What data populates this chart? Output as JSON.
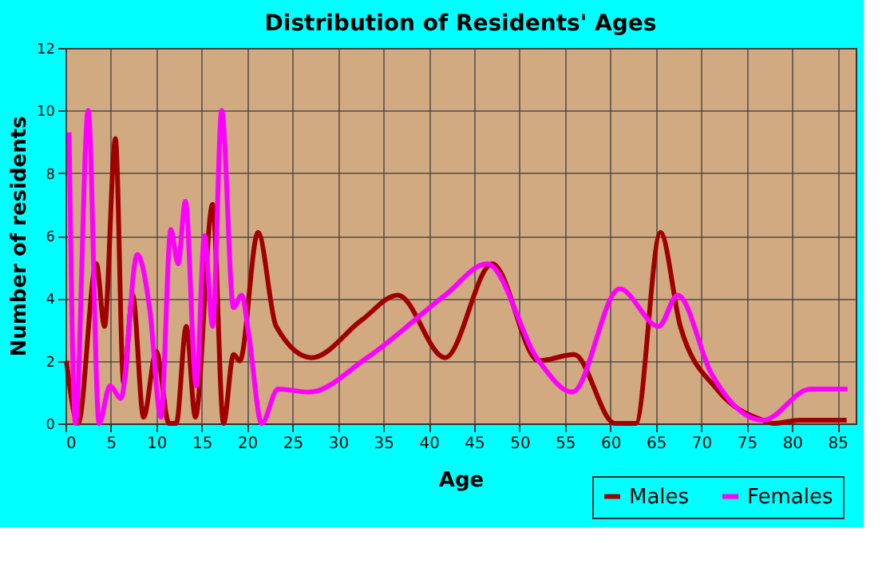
{
  "chart_data": {
    "type": "line",
    "title": "Distribution of Residents' Ages",
    "xlabel": "Age",
    "ylabel": "Number of residents",
    "series": [
      {
        "name": "Males",
        "color": "#a00000",
        "x": [
          0.1,
          1.4,
          3.4,
          4.3,
          5.5,
          6.4,
          7.4,
          8.6,
          10.0,
          11.4,
          12.2,
          13.3,
          14.3,
          16.2,
          17.4,
          18.5,
          19.2,
          21.2,
          23.2,
          27.1,
          32.6,
          36.6,
          41.8,
          47.0,
          52.1,
          56.0,
          60.5,
          62.8,
          65.5,
          67.7,
          71.7,
          76.8,
          78.0,
          80.8,
          86.0
        ],
        "values": [
          2.0,
          0,
          5.1,
          3.1,
          9.1,
          1.3,
          4.1,
          0.2,
          2.3,
          0,
          0,
          3.1,
          0.2,
          7.0,
          0,
          2.2,
          2.0,
          6.1,
          3.1,
          2.1,
          3.3,
          4.1,
          2.1,
          5.1,
          2.0,
          2.2,
          0,
          0,
          6.1,
          3.1,
          1.1,
          0.1,
          0,
          0.1,
          0.1
        ]
      },
      {
        "name": "Females",
        "color": "#ff00ff",
        "x": [
          0.4,
          1.1,
          2.5,
          3.7,
          4.9,
          6.1,
          7.9,
          9.3,
          10.5,
          11.6,
          12.4,
          13.2,
          14.4,
          15.3,
          16.2,
          17.2,
          18.5,
          19.4,
          20.2,
          21.6,
          23.4,
          26.8,
          33.2,
          41.8,
          46.4,
          52.1,
          55.8,
          61.0,
          65.3,
          67.4,
          71.1,
          76.8,
          82.0,
          86.1
        ],
        "values": [
          9.3,
          0,
          10.0,
          0,
          1.2,
          0.8,
          5.4,
          3.6,
          0.2,
          6.2,
          5.1,
          7.1,
          1.2,
          6.0,
          3.1,
          10.0,
          3.7,
          4.1,
          2.8,
          0,
          1.1,
          1.0,
          2.1,
          4.1,
          5.1,
          2.0,
          1.0,
          4.3,
          3.1,
          4.1,
          1.6,
          0.1,
          1.1,
          1.1
        ]
      }
    ],
    "xlim": [
      0,
      87
    ],
    "xticks": [
      0,
      5,
      10,
      15,
      20,
      25,
      30,
      35,
      40,
      45,
      50,
      55,
      60,
      65,
      70,
      75,
      80,
      85
    ],
    "ylim": [
      0,
      12
    ],
    "yticks": [
      0,
      2,
      4,
      6,
      8,
      10,
      12
    ],
    "grid": true,
    "legend": "bottom right",
    "marker": "none",
    "line_style": "solid"
  }
}
